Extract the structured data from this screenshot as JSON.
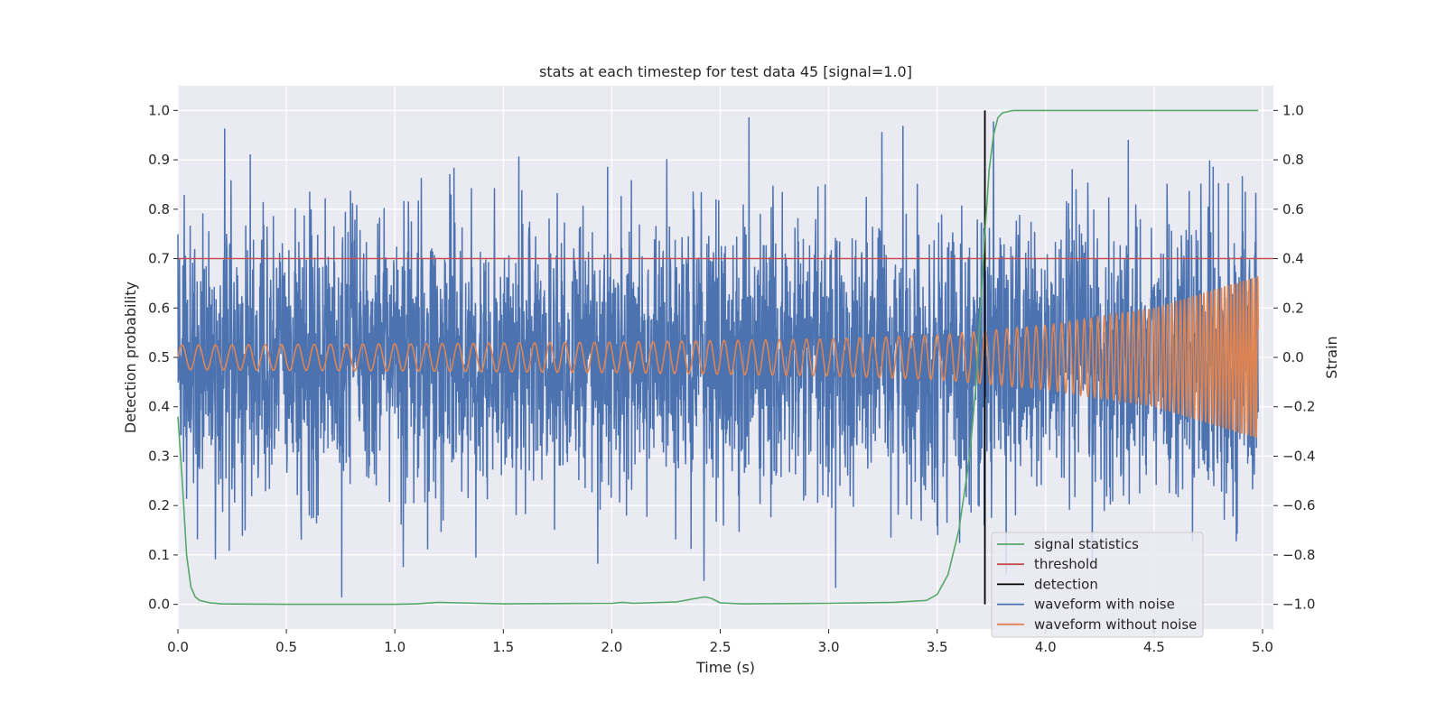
{
  "chart_data": {
    "type": "line",
    "title": "stats at each timestep for test data 45 [signal=1.0]",
    "xlabel": "Time (s)",
    "ylabel": "Detection probability",
    "ylabel_right": "Strain",
    "xlim": [
      0.0,
      5.05
    ],
    "ylim": [
      -0.05,
      1.05
    ],
    "ylim_right": [
      -1.1,
      1.1
    ],
    "grid": true,
    "legend_position": "lower-right",
    "x_ticks": [
      0.0,
      0.5,
      1.0,
      1.5,
      2.0,
      2.5,
      3.0,
      3.5,
      4.0,
      4.5,
      5.0
    ],
    "x_tick_labels": [
      "0.0",
      "0.5",
      "1.0",
      "1.5",
      "2.0",
      "2.5",
      "3.0",
      "3.5",
      "4.0",
      "4.5",
      "5.0"
    ],
    "y_ticks": [
      0.0,
      0.1,
      0.2,
      0.3,
      0.4,
      0.5,
      0.6,
      0.7,
      0.8,
      0.9,
      1.0
    ],
    "y_tick_labels": [
      "0.0",
      "0.1",
      "0.2",
      "0.3",
      "0.4",
      "0.5",
      "0.6",
      "0.7",
      "0.8",
      "0.9",
      "1.0"
    ],
    "y_right_ticks": [
      -1.0,
      -0.8,
      -0.6,
      -0.4,
      -0.2,
      0.0,
      0.2,
      0.4,
      0.6,
      0.8,
      1.0
    ],
    "y_right_tick_labels": [
      "−1.0",
      "−0.8",
      "−0.6",
      "−0.4",
      "−0.2",
      "0.0",
      "0.2",
      "0.4",
      "0.6",
      "0.8",
      "1.0"
    ],
    "threshold": 0.7,
    "detection_time": 3.72,
    "series": [
      {
        "name": "signal statistics",
        "color": "#55a868",
        "axis": "left",
        "x": [
          0.0,
          0.02,
          0.04,
          0.06,
          0.08,
          0.1,
          0.15,
          0.2,
          0.5,
          1.0,
          1.1,
          1.2,
          1.3,
          1.5,
          2.0,
          2.05,
          2.1,
          2.3,
          2.4,
          2.43,
          2.46,
          2.5,
          2.6,
          3.0,
          3.3,
          3.45,
          3.5,
          3.55,
          3.6,
          3.65,
          3.68,
          3.7,
          3.72,
          3.74,
          3.76,
          3.78,
          3.8,
          3.85,
          4.0,
          4.5,
          4.98
        ],
        "y": [
          0.38,
          0.25,
          0.1,
          0.035,
          0.015,
          0.008,
          0.003,
          0.001,
          0.0,
          0.0,
          0.001,
          0.004,
          0.003,
          0.001,
          0.002,
          0.004,
          0.002,
          0.005,
          0.013,
          0.015,
          0.012,
          0.003,
          0.001,
          0.002,
          0.004,
          0.008,
          0.02,
          0.06,
          0.15,
          0.3,
          0.45,
          0.6,
          0.75,
          0.88,
          0.95,
          0.985,
          0.995,
          1.0,
          1.0,
          1.0,
          1.0
        ]
      },
      {
        "name": "threshold",
        "color": "#c44e52",
        "axis": "left",
        "x": [
          0.0,
          5.05
        ],
        "y": [
          0.7,
          0.7
        ]
      },
      {
        "name": "detection",
        "color": "#000000",
        "axis": "left",
        "x": [
          3.72,
          3.72
        ],
        "y": [
          0.0,
          1.0
        ]
      },
      {
        "name": "waveform with noise",
        "color": "#4c72b0",
        "axis": "right",
        "description_range": [
          -0.98,
          1.0
        ],
        "x_range": [
          0.0,
          4.98
        ]
      },
      {
        "name": "waveform without noise",
        "color": "#dd8452",
        "axis": "right",
        "envelope": {
          "t": [
            0.0,
            1.0,
            2.0,
            3.0,
            3.5,
            4.0,
            4.5,
            4.98
          ],
          "amp": [
            0.05,
            0.055,
            0.062,
            0.075,
            0.09,
            0.13,
            0.2,
            0.33
          ]
        },
        "x_range": [
          0.0,
          4.98
        ]
      }
    ],
    "legend": [
      {
        "label": "signal statistics",
        "color": "#55a868"
      },
      {
        "label": "threshold",
        "color": "#c44e52"
      },
      {
        "label": "detection",
        "color": "#000000"
      },
      {
        "label": "waveform with noise",
        "color": "#4c72b0"
      },
      {
        "label": "waveform without noise",
        "color": "#dd8452"
      }
    ]
  }
}
